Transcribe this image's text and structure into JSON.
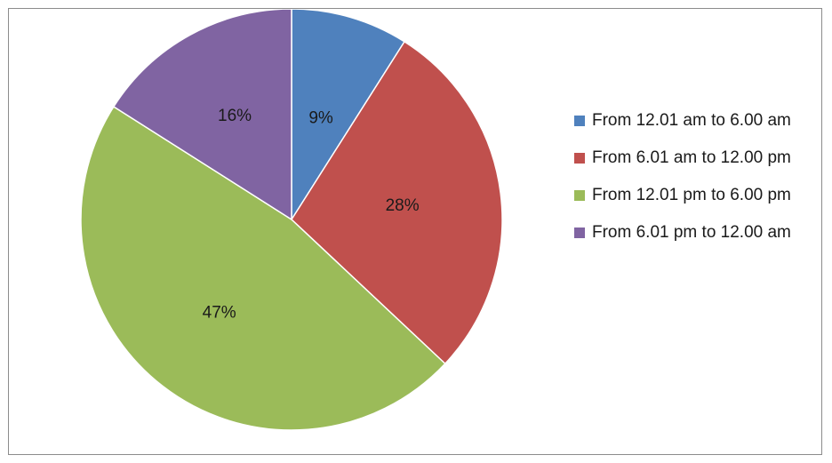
{
  "chart_data": {
    "type": "pie",
    "categories": [
      "From 12.01 am to 6.00 am",
      "From 6.01 am to 12.00 pm",
      "From 12.01 pm to 6.00 pm",
      "From 6.01 pm to 12.00 am"
    ],
    "values": [
      9,
      28,
      47,
      16
    ],
    "labels": [
      "9%",
      "28%",
      "47%",
      "16%"
    ],
    "colors": [
      "#4F81BD",
      "#C0504D",
      "#9BBB59",
      "#8064A2"
    ],
    "start_angle": "12 o'clock",
    "direction": "clockwise",
    "legend_position": "right"
  }
}
